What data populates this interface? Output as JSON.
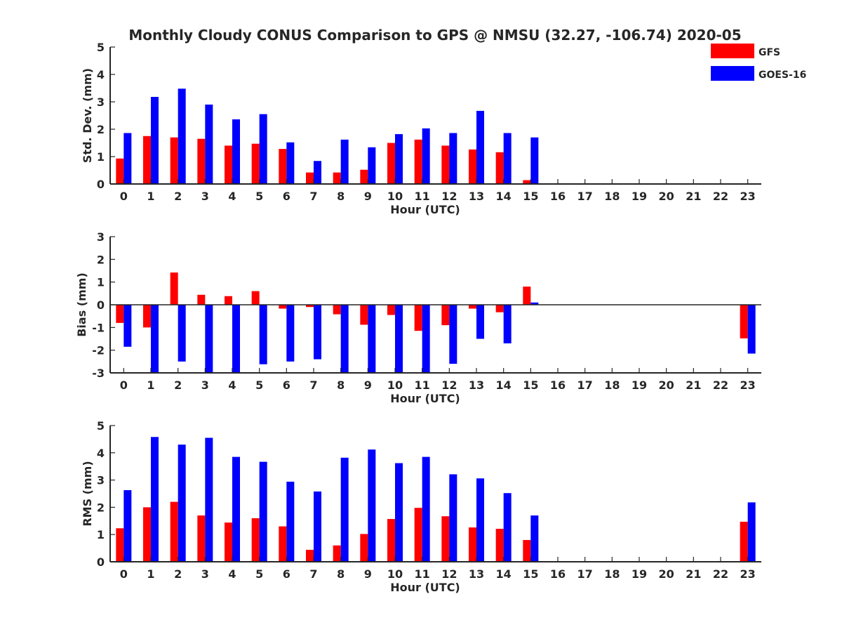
{
  "title": "Monthly Cloudy CONUS Comparison to GPS @ NMSU (32.27, -106.74) 2020-05",
  "legend": {
    "placement": "top-right",
    "entries": [
      {
        "name": "GFS",
        "color": "#ff0000"
      },
      {
        "name": "GOES-16",
        "color": "#0000ff"
      }
    ]
  },
  "chart_data": [
    {
      "type": "bar",
      "xlabel": "Hour (UTC)",
      "ylabel": "Std. Dev. (mm)",
      "ylim": [
        0,
        5
      ],
      "yticks": [
        0,
        1,
        2,
        3,
        4,
        5
      ],
      "categories": [
        "0",
        "1",
        "2",
        "3",
        "4",
        "5",
        "6",
        "7",
        "8",
        "9",
        "10",
        "11",
        "12",
        "13",
        "14",
        "15",
        "16",
        "17",
        "18",
        "19",
        "20",
        "21",
        "22",
        "23"
      ],
      "series": [
        {
          "name": "GFS",
          "color": "#ff0000",
          "values": [
            0.93,
            1.75,
            1.7,
            1.65,
            1.4,
            1.47,
            1.28,
            0.42,
            0.42,
            0.52,
            1.5,
            1.62,
            1.4,
            1.26,
            1.16,
            0.14,
            null,
            null,
            null,
            null,
            null,
            null,
            null,
            null
          ]
        },
        {
          "name": "GOES-16",
          "color": "#0000ff",
          "values": [
            1.86,
            3.18,
            3.48,
            2.9,
            2.36,
            2.55,
            1.52,
            0.84,
            1.62,
            1.34,
            1.82,
            2.03,
            1.86,
            2.67,
            1.86,
            1.7,
            null,
            null,
            null,
            null,
            null,
            null,
            null,
            null
          ]
        }
      ]
    },
    {
      "type": "bar",
      "xlabel": "Hour (UTC)",
      "ylabel": "Bias (mm)",
      "ylim": [
        -3,
        3
      ],
      "yticks": [
        -3,
        -2,
        -1,
        0,
        1,
        2,
        3
      ],
      "zero_line": true,
      "categories": [
        "0",
        "1",
        "2",
        "3",
        "4",
        "5",
        "6",
        "7",
        "8",
        "9",
        "10",
        "11",
        "12",
        "13",
        "14",
        "15",
        "16",
        "17",
        "18",
        "19",
        "20",
        "21",
        "22",
        "23"
      ],
      "series": [
        {
          "name": "GFS",
          "color": "#ff0000",
          "values": [
            -0.8,
            -1.0,
            1.42,
            0.44,
            0.38,
            0.6,
            -0.17,
            -0.1,
            -0.42,
            -0.88,
            -0.45,
            -1.15,
            -0.9,
            -0.17,
            -0.33,
            0.8,
            null,
            null,
            null,
            null,
            null,
            null,
            null,
            -1.48
          ]
        },
        {
          "name": "GOES-16",
          "color": "#0000ff",
          "values": [
            -1.85,
            -3.0,
            -2.5,
            -3.0,
            -3.0,
            -2.62,
            -2.5,
            -2.4,
            -3.0,
            -3.0,
            -3.0,
            -3.0,
            -2.6,
            -1.5,
            -1.7,
            0.1,
            null,
            null,
            null,
            null,
            null,
            null,
            null,
            -2.15
          ]
        }
      ]
    },
    {
      "type": "bar",
      "xlabel": "Hour (UTC)",
      "ylabel": "RMS (mm)",
      "ylim": [
        0,
        5
      ],
      "yticks": [
        0,
        1,
        2,
        3,
        4,
        5
      ],
      "categories": [
        "0",
        "1",
        "2",
        "3",
        "4",
        "5",
        "6",
        "7",
        "8",
        "9",
        "10",
        "11",
        "12",
        "13",
        "14",
        "15",
        "16",
        "17",
        "18",
        "19",
        "20",
        "21",
        "22",
        "23"
      ],
      "series": [
        {
          "name": "GFS",
          "color": "#ff0000",
          "values": [
            1.23,
            2.0,
            2.2,
            1.7,
            1.44,
            1.6,
            1.3,
            0.44,
            0.6,
            1.02,
            1.57,
            1.98,
            1.67,
            1.26,
            1.21,
            0.8,
            null,
            null,
            null,
            null,
            null,
            null,
            null,
            1.47
          ]
        },
        {
          "name": "GOES-16",
          "color": "#0000ff",
          "values": [
            2.63,
            4.58,
            4.3,
            4.55,
            3.85,
            3.67,
            2.94,
            2.58,
            3.82,
            4.12,
            3.62,
            3.85,
            3.21,
            3.06,
            2.52,
            1.7,
            null,
            null,
            null,
            null,
            null,
            null,
            null,
            2.18
          ]
        }
      ]
    }
  ]
}
